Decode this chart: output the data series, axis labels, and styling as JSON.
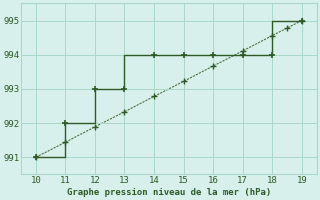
{
  "x_step": [
    10,
    11,
    11,
    12,
    12,
    13,
    13,
    14,
    15,
    16,
    17,
    18,
    18,
    19
  ],
  "y_step": [
    991,
    991,
    992,
    992,
    993,
    993,
    994,
    994,
    994,
    994,
    994,
    994,
    995,
    995
  ],
  "x_markers": [
    10,
    11,
    12,
    13,
    14,
    15,
    16,
    17,
    18,
    19
  ],
  "y_markers": [
    991,
    992,
    993,
    993,
    994,
    994,
    994,
    994,
    994,
    995
  ],
  "x_trend": [
    10,
    11,
    12,
    13,
    14,
    15,
    16,
    17,
    18,
    18.5,
    19
  ],
  "y_trend": [
    991,
    991.44,
    991.89,
    992.33,
    992.78,
    993.22,
    993.67,
    994.11,
    994.56,
    994.78,
    995
  ],
  "line_color": "#2d5a27",
  "marker_color": "#2d5a27",
  "bg_color": "#d8f0eb",
  "grid_color": "#a8d8c8",
  "xlabel": "Graphe pression niveau de la mer (hPa)",
  "xlim": [
    9.5,
    19.5
  ],
  "ylim": [
    990.5,
    995.5
  ],
  "xticks": [
    10,
    11,
    12,
    13,
    14,
    15,
    16,
    17,
    18,
    19
  ],
  "yticks": [
    991,
    992,
    993,
    994,
    995
  ],
  "font_color": "#2d5a27"
}
